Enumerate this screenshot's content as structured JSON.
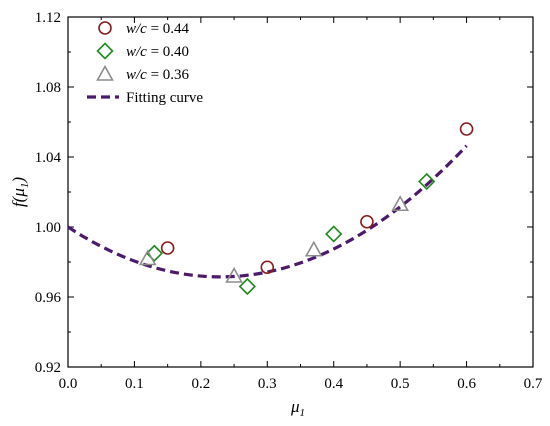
{
  "chart_data": {
    "type": "scatter",
    "xlabel": "μ",
    "xlabel_sub": "1",
    "ylabel_main": "f(μ",
    "ylabel_sub": "1",
    "ylabel_close": ")",
    "xlim": [
      0.0,
      0.7
    ],
    "ylim": [
      0.92,
      1.12
    ],
    "xticks": [
      "0.0",
      "0.1",
      "0.2",
      "0.3",
      "0.4",
      "0.5",
      "0.6",
      "0.7"
    ],
    "yticks": [
      "0.92",
      "0.96",
      "1.00",
      "1.04",
      "1.08",
      "1.12"
    ],
    "grid": false,
    "legend_position": "top-left",
    "series": [
      {
        "name_italic": "w/c",
        "name_rest": " = 0.44",
        "marker": "circle",
        "color": "#8b1a1a",
        "points": [
          {
            "x": 0.15,
            "y": 0.988
          },
          {
            "x": 0.3,
            "y": 0.977
          },
          {
            "x": 0.45,
            "y": 1.003
          },
          {
            "x": 0.6,
            "y": 1.056
          }
        ]
      },
      {
        "name_italic": "w/c",
        "name_rest": " = 0.40",
        "marker": "diamond",
        "color": "#1f8a1f",
        "points": [
          {
            "x": 0.13,
            "y": 0.985
          },
          {
            "x": 0.27,
            "y": 0.966
          },
          {
            "x": 0.4,
            "y": 0.996
          },
          {
            "x": 0.54,
            "y": 1.026
          }
        ]
      },
      {
        "name_italic": "w/c",
        "name_rest": " = 0.36",
        "marker": "triangle",
        "color": "#8c8c8c",
        "points": [
          {
            "x": 0.12,
            "y": 0.982
          },
          {
            "x": 0.25,
            "y": 0.972
          },
          {
            "x": 0.37,
            "y": 0.987
          },
          {
            "x": 0.5,
            "y": 1.013
          }
        ]
      }
    ],
    "fit": {
      "name": "Fitting curve",
      "style": "dashed",
      "color": "#4b1a6b",
      "x_range": [
        0.0,
        0.6
      ],
      "coefficients": [
        1.0,
        -0.249,
        0.544
      ]
    }
  }
}
